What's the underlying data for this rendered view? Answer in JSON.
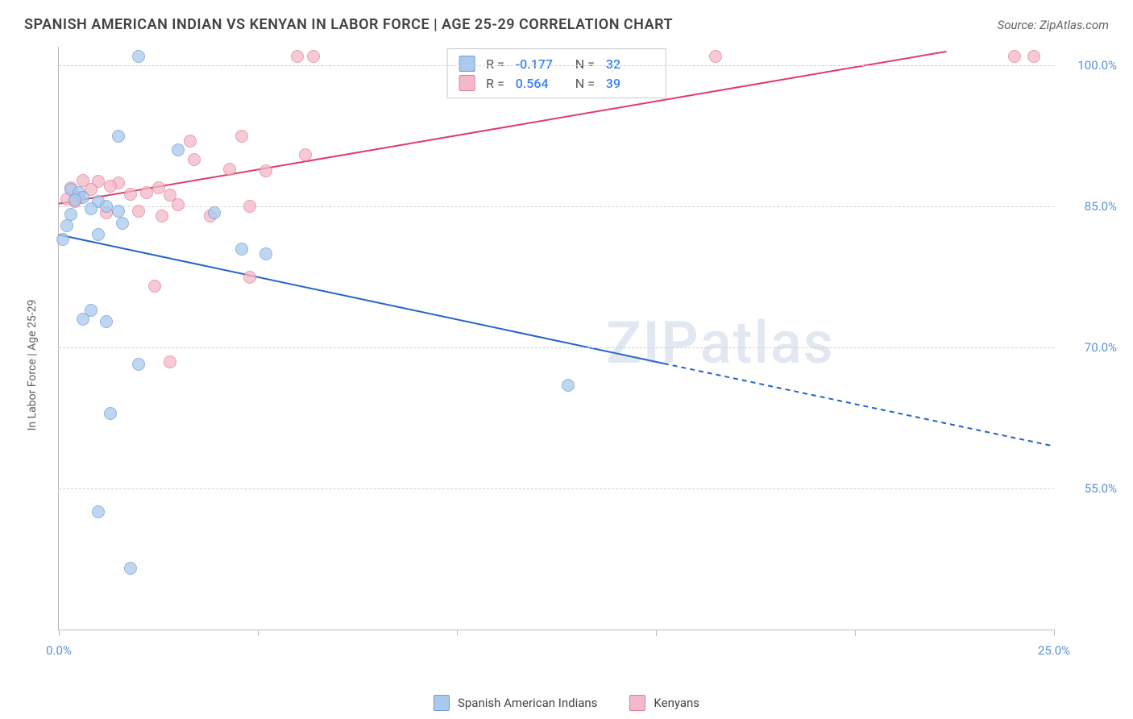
{
  "header": {
    "title": "SPANISH AMERICAN INDIAN VS KENYAN IN LABOR FORCE | AGE 25-29 CORRELATION CHART",
    "source": "Source: ZipAtlas.com"
  },
  "chart": {
    "type": "scatter",
    "y_axis_label": "In Labor Force | Age 25-29",
    "xlim": [
      0,
      25
    ],
    "ylim": [
      40,
      102
    ],
    "xticks": [
      0,
      5,
      10,
      15,
      20,
      25
    ],
    "xtick_labels": {
      "0": "0.0%",
      "25": "25.0%"
    },
    "yticks": [
      55,
      70,
      85,
      100
    ],
    "ytick_labels": [
      "55.0%",
      "70.0%",
      "85.0%",
      "100.0%"
    ],
    "background_color": "#ffffff",
    "grid_color": "#d0d0d0",
    "axis_color": "#bdbdbd",
    "tick_label_color": "#5b8fd6",
    "watermark": "ZIPatlas",
    "series": {
      "spanish_american_indians": {
        "label": "Spanish American Indians",
        "color_fill": "#aac9ec",
        "color_stroke": "#6f9bd8",
        "R": "-0.177",
        "N": "32",
        "trend": {
          "x1": 0,
          "y1": 82,
          "x2": 15.2,
          "y2": 68.3,
          "x2_dash": 25,
          "y2_dash": 59.5,
          "stroke": "#2563c9",
          "width": 2
        },
        "points": [
          [
            2.0,
            101
          ],
          [
            1.5,
            92.5
          ],
          [
            3.0,
            91.0
          ],
          [
            0.3,
            86.8
          ],
          [
            0.5,
            86.5
          ],
          [
            0.6,
            86.0
          ],
          [
            0.4,
            85.7
          ],
          [
            1.0,
            85.5
          ],
          [
            1.2,
            85.0
          ],
          [
            0.8,
            84.8
          ],
          [
            1.5,
            84.5
          ],
          [
            3.9,
            84.3
          ],
          [
            0.3,
            84.2
          ],
          [
            0.2,
            83.0
          ],
          [
            1.6,
            83.2
          ],
          [
            1.0,
            82.0
          ],
          [
            0.1,
            81.5
          ],
          [
            4.6,
            80.5
          ],
          [
            5.2,
            80.0
          ],
          [
            0.8,
            74.0
          ],
          [
            0.6,
            73.0
          ],
          [
            1.2,
            72.8
          ],
          [
            2.0,
            68.2
          ],
          [
            12.8,
            66.0
          ],
          [
            1.3,
            63.0
          ],
          [
            1.0,
            52.5
          ],
          [
            1.8,
            46.5
          ]
        ]
      },
      "kenyans": {
        "label": "Kenyans",
        "color_fill": "#f4b9c8",
        "color_stroke": "#e57b94",
        "R": "0.564",
        "N": "39",
        "trend": {
          "x1": 0,
          "y1": 85.3,
          "x2": 22.3,
          "y2": 101.5,
          "stroke": "#e13b68",
          "width": 2
        },
        "points": [
          [
            6.0,
            101
          ],
          [
            6.4,
            101
          ],
          [
            16.5,
            101
          ],
          [
            24.0,
            101
          ],
          [
            24.5,
            101
          ],
          [
            4.6,
            92.5
          ],
          [
            3.3,
            92.0
          ],
          [
            6.2,
            90.5
          ],
          [
            3.4,
            90.0
          ],
          [
            4.3,
            89.0
          ],
          [
            5.2,
            88.8
          ],
          [
            0.6,
            87.8
          ],
          [
            1.0,
            87.7
          ],
          [
            1.5,
            87.5
          ],
          [
            1.3,
            87.2
          ],
          [
            0.3,
            87.0
          ],
          [
            2.5,
            87.0
          ],
          [
            0.8,
            86.8
          ],
          [
            2.2,
            86.5
          ],
          [
            1.8,
            86.3
          ],
          [
            0.5,
            86.0
          ],
          [
            2.8,
            86.2
          ],
          [
            3.0,
            85.2
          ],
          [
            4.8,
            85.0
          ],
          [
            2.0,
            84.5
          ],
          [
            1.2,
            84.3
          ],
          [
            2.6,
            84.0
          ],
          [
            3.8,
            84.0
          ],
          [
            0.2,
            85.8
          ],
          [
            0.4,
            85.5
          ],
          [
            2.4,
            76.5
          ],
          [
            4.8,
            77.5
          ],
          [
            2.8,
            68.5
          ]
        ]
      }
    }
  },
  "legend_top": [
    {
      "swatch_fill": "#aac9ec",
      "swatch_stroke": "#6f9bd8",
      "R": "-0.177",
      "N": "32"
    },
    {
      "swatch_fill": "#f4b9c8",
      "swatch_stroke": "#e57b94",
      "R": "0.564",
      "N": "39"
    }
  ],
  "legend_bottom": [
    {
      "swatch_fill": "#aac9ec",
      "swatch_stroke": "#6f9bd8",
      "label": "Spanish American Indians"
    },
    {
      "swatch_fill": "#f4b9c8",
      "swatch_stroke": "#e57b94",
      "label": "Kenyans"
    }
  ]
}
